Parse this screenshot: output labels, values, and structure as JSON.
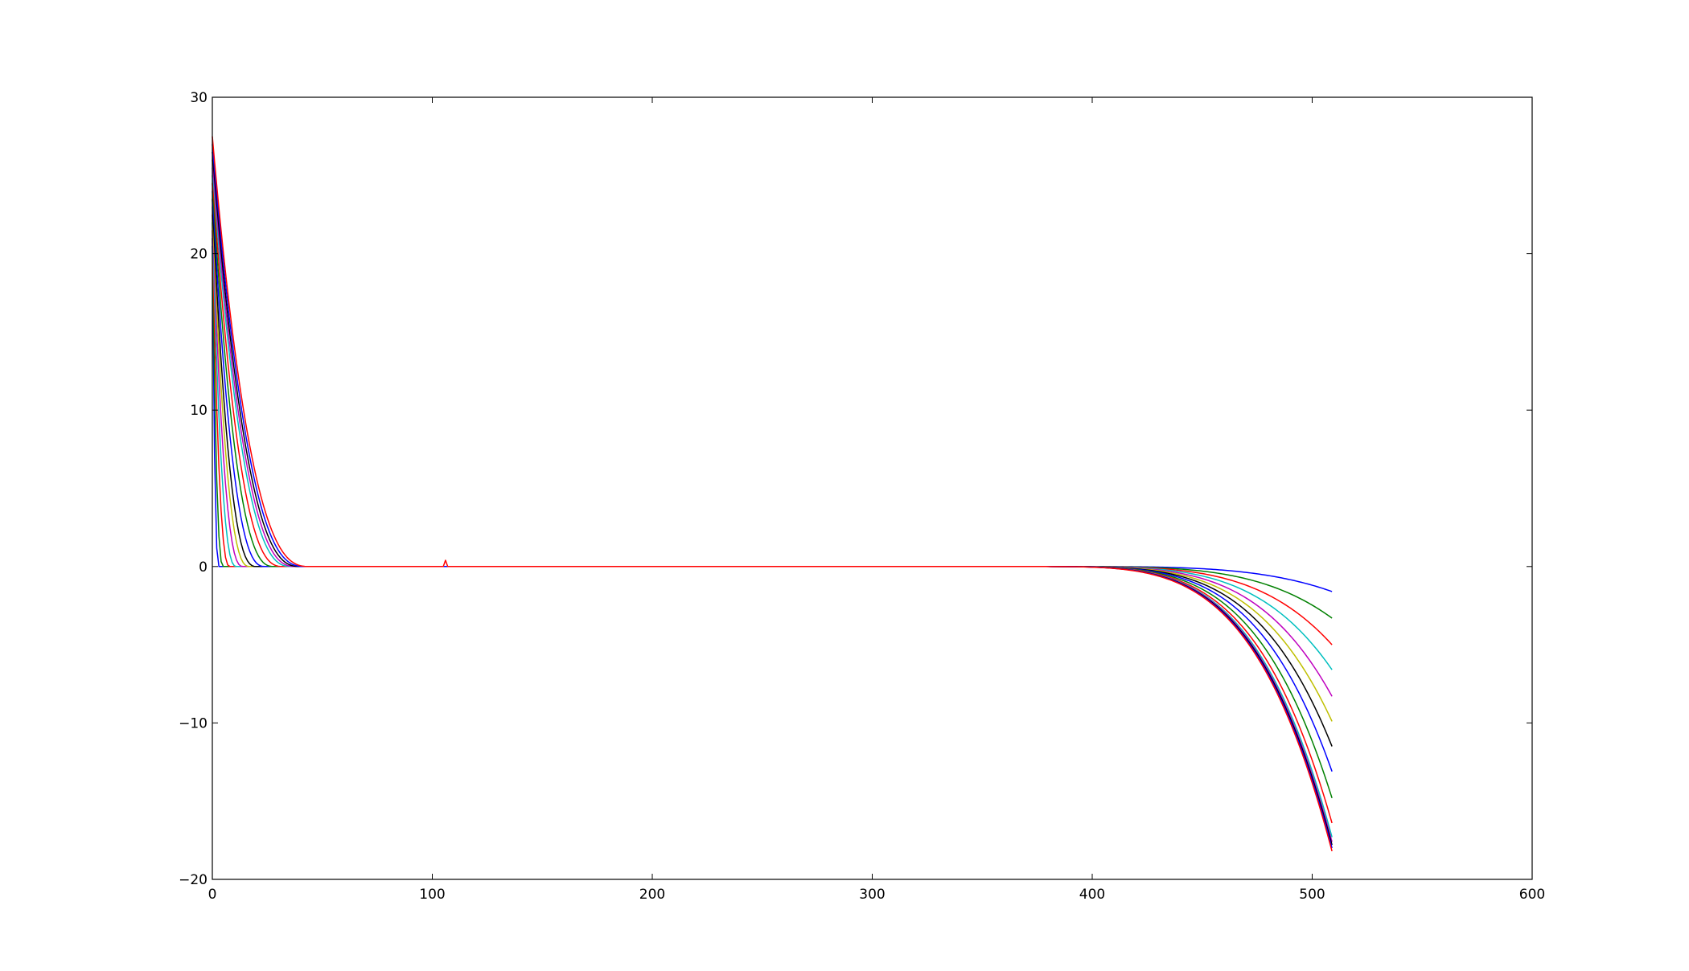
{
  "chart_data": {
    "type": "line",
    "title": "",
    "xlabel": "",
    "ylabel": "",
    "xlim": [
      0,
      600
    ],
    "ylim": [
      -20,
      30
    ],
    "x_ticks": [
      0,
      100,
      200,
      300,
      400,
      500,
      600
    ],
    "y_ticks": [
      -20,
      -10,
      0,
      10,
      20,
      30
    ],
    "x_tick_labels": [
      "0",
      "100",
      "200",
      "300",
      "400",
      "500",
      "600"
    ],
    "y_tick_labels": [
      "−20",
      "−10",
      "0",
      "10",
      "20",
      "30"
    ],
    "grid": false,
    "legend": false,
    "n_points": 510,
    "series": [
      {
        "color": "#0000ff",
        "left_peak": 20.5,
        "left_decay_end": 3,
        "right_min": -1.6
      },
      {
        "color": "#008000",
        "left_peak": 21.0,
        "left_decay_end": 5,
        "right_min": -3.3
      },
      {
        "color": "#ff0000",
        "left_peak": 21.5,
        "left_decay_end": 8,
        "right_min": -5.0
      },
      {
        "color": "#00bfbf",
        "left_peak": 22.0,
        "left_decay_end": 11,
        "right_min": -6.6
      },
      {
        "color": "#bf00bf",
        "left_peak": 22.5,
        "left_decay_end": 14,
        "right_min": -8.3
      },
      {
        "color": "#bfbf00",
        "left_peak": 23.0,
        "left_decay_end": 17,
        "right_min": -9.9
      },
      {
        "color": "#000000",
        "left_peak": 23.5,
        "left_decay_end": 20,
        "right_min": -11.5
      },
      {
        "color": "#0000ff",
        "left_peak": 24.0,
        "left_decay_end": 24,
        "right_min": -13.1
      },
      {
        "color": "#008000",
        "left_peak": 24.5,
        "left_decay_end": 28,
        "right_min": -14.8
      },
      {
        "color": "#ff0000",
        "left_peak": 25.0,
        "left_decay_end": 32,
        "right_min": -16.4
      },
      {
        "color": "#00bfbf",
        "left_peak": 25.5,
        "left_decay_end": 36,
        "right_min": -17.3
      },
      {
        "color": "#bf00bf",
        "left_peak": 26.0,
        "left_decay_end": 38,
        "right_min": -17.6
      },
      {
        "color": "#000000",
        "left_peak": 26.5,
        "left_decay_end": 40,
        "right_min": -17.8
      },
      {
        "color": "#0000ff",
        "left_peak": 27.0,
        "left_decay_end": 42,
        "right_min": -18.0
      },
      {
        "color": "#ff0000",
        "left_peak": 27.5,
        "left_decay_end": 44,
        "right_min": -18.2,
        "spike_x": 106,
        "spike_y": 0.4
      }
    ]
  }
}
